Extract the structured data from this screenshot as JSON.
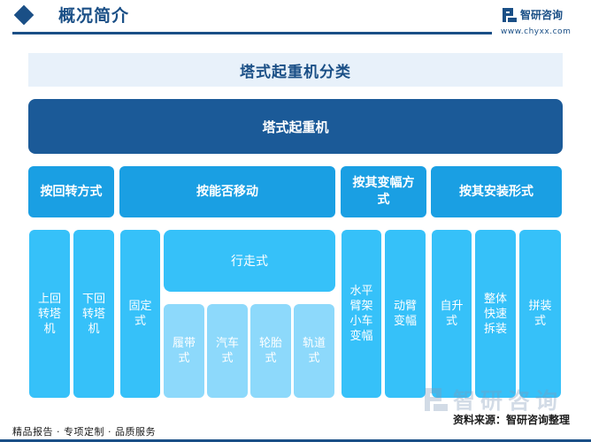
{
  "header": {
    "title": "概况简介",
    "brand_name": "智研咨询",
    "brand_url": "www.chyxx.com"
  },
  "diagram": {
    "title": "塔式起重机分类",
    "root": "塔式起重机",
    "categories": [
      {
        "label": "按回转方式"
      },
      {
        "label": "按能否移动"
      },
      {
        "label": "按其变幅方式"
      },
      {
        "label": "按其安装形式"
      }
    ],
    "rotation": [
      "上回转塔机",
      "下回转塔机"
    ],
    "mobility": {
      "fixed": "固定式",
      "traveling": "行走式",
      "traveling_types": [
        "履带式",
        "汽车式",
        "轮胎式",
        "轨道式"
      ]
    },
    "luffing": [
      "水平臂架小车变幅",
      "动臂变幅"
    ],
    "installation": [
      "自升式",
      "整体快速拆装",
      "拼装式"
    ]
  },
  "footer": {
    "left": "精品报告 · 专项定制 · 品质服务",
    "source": "资料来源：智研咨询整理",
    "watermark_brand": "智研咨询"
  },
  "colors": {
    "brand": "#1a4f86",
    "root": "#1b5a98",
    "category": "#1a9fe3",
    "leaf": "#36c1f9",
    "sub_leaf": "#8dd9fb"
  }
}
